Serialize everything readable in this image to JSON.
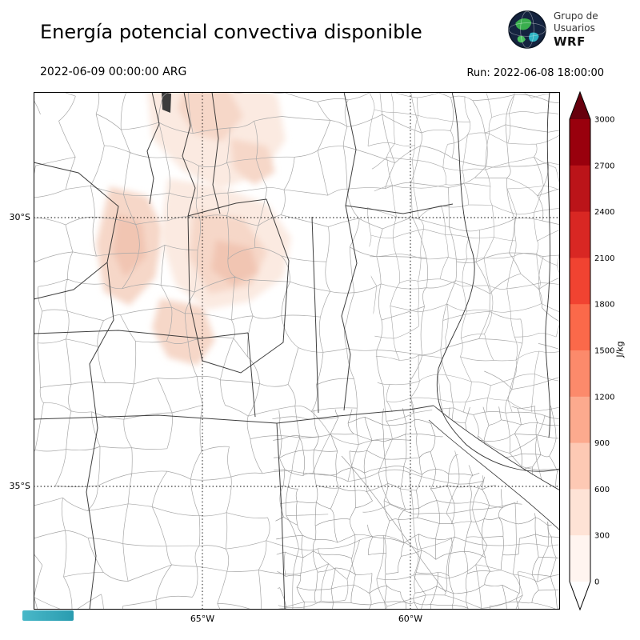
{
  "header": {
    "title": "Energía potencial convectiva disponible",
    "valid_time": "2022-06-09 00:00:00 ARG",
    "run_label": "Run: 2022-06-08 18:00:00",
    "logo": {
      "line1": "Grupo de",
      "line2": "Usuarios",
      "line3": "WRF"
    }
  },
  "axes": {
    "lat_ticks": [
      {
        "label": "30°S"
      },
      {
        "label": "35°S"
      }
    ],
    "lon_ticks": [
      {
        "label": "65°W"
      },
      {
        "label": "60°W"
      }
    ]
  },
  "colorbar": {
    "unit": "J/kg",
    "ticks_top_to_bottom": [
      "3000",
      "2700",
      "2400",
      "2100",
      "1800",
      "1500",
      "1200",
      "900",
      "600",
      "300",
      "0"
    ],
    "segment_colors_top_to_bottom": [
      "#99000d",
      "#bb1419",
      "#d92723",
      "#f14331",
      "#fb694a",
      "#fc8a6b",
      "#fcaa8e",
      "#fdc9b4",
      "#fee3d6",
      "#fff5f0"
    ],
    "arrow_top_color": "#67000d",
    "arrow_bottom_color": "#ffffff"
  },
  "map_colors": {
    "cape_light": "#fbeae1",
    "cape_mid": "#f6d7c8",
    "cape_deep": "#f1c5b2",
    "province_line": "#2b2b2b",
    "department_line": "#a8a8a8",
    "river_line": "#333333",
    "watermark": "#49b8c8"
  }
}
